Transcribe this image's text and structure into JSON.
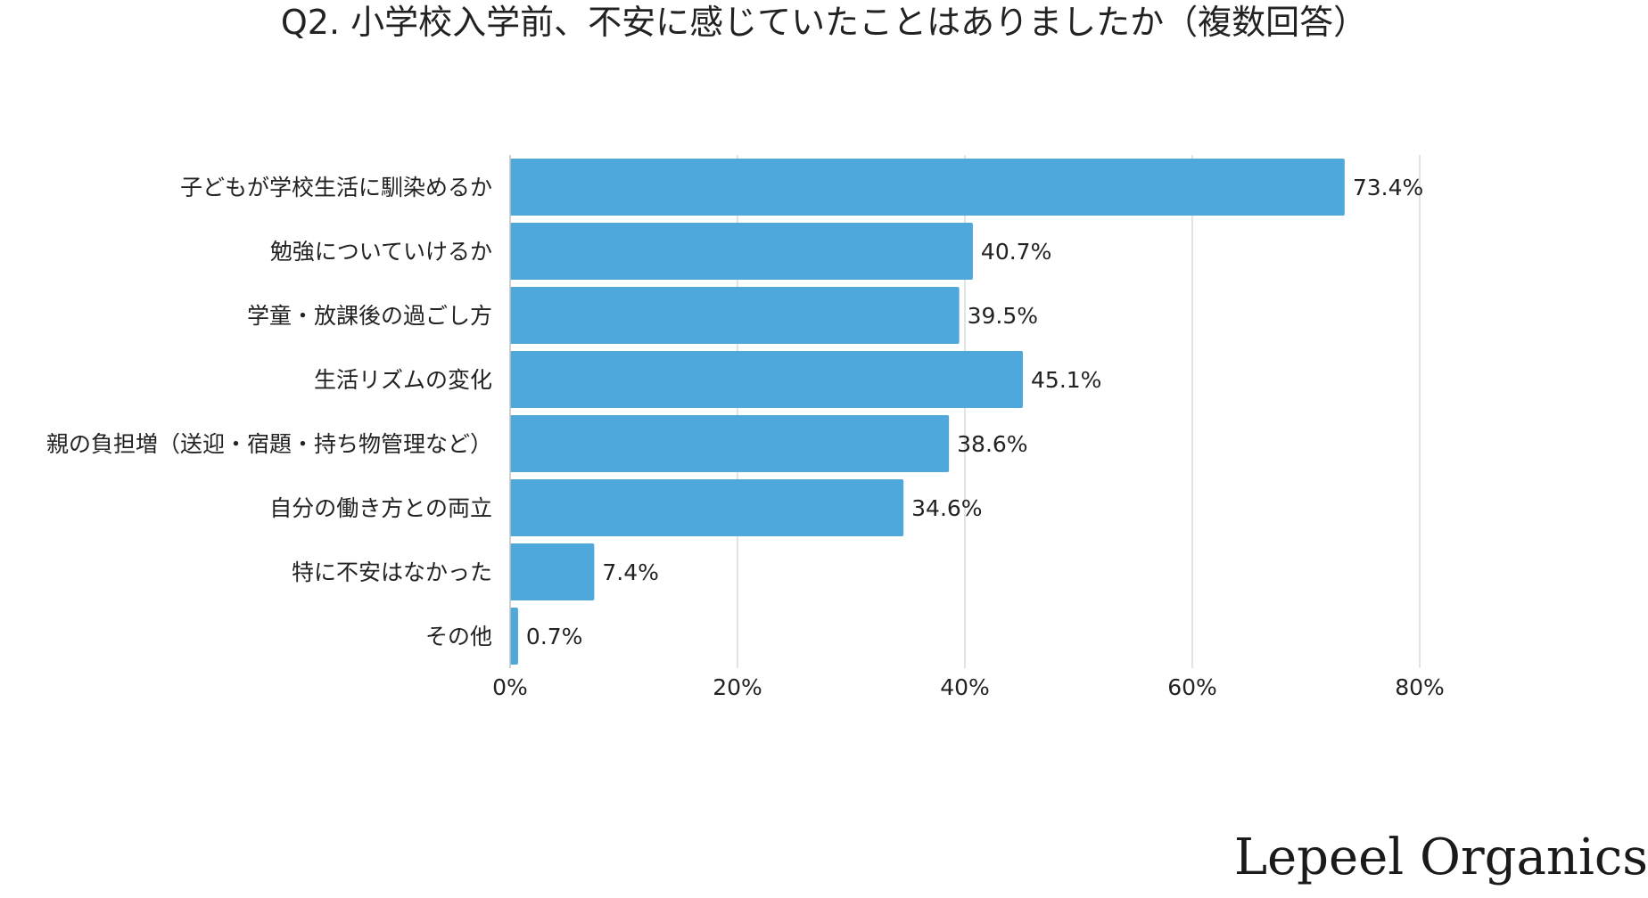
{
  "brand": "Lepeel Organics",
  "colors": {
    "bar": "#4fa8dc",
    "grid": "#d0d0d0",
    "axis": "#bfbfbf",
    "text": "#222222"
  },
  "chart_data": {
    "type": "bar",
    "orientation": "horizontal",
    "title": "Q2. 小学校入学前、不安に感じていたことはありましたか（複数回答）",
    "xlabel": "",
    "ylabel": "",
    "categories": [
      "子どもが学校生活に馴染めるか",
      "勉強についていけるか",
      "学童・放課後の過ごし方",
      "生活リズムの変化",
      "親の負担増（送迎・宿題・持ち物管理など）",
      "自分の働き方との両立",
      "特に不安はなかった",
      "その他"
    ],
    "values": [
      73.4,
      40.7,
      39.5,
      45.1,
      38.6,
      34.6,
      7.4,
      0.7
    ],
    "value_labels": [
      "73.4%",
      "40.7%",
      "39.5%",
      "45.1%",
      "38.6%",
      "34.6%",
      "7.4%",
      "0.7%"
    ],
    "xlim": [
      0,
      80
    ],
    "xticks": [
      0,
      20,
      40,
      60,
      80
    ],
    "xtick_labels": [
      "0%",
      "20%",
      "40%",
      "60%",
      "80%"
    ],
    "grid": true,
    "legend": "none"
  }
}
